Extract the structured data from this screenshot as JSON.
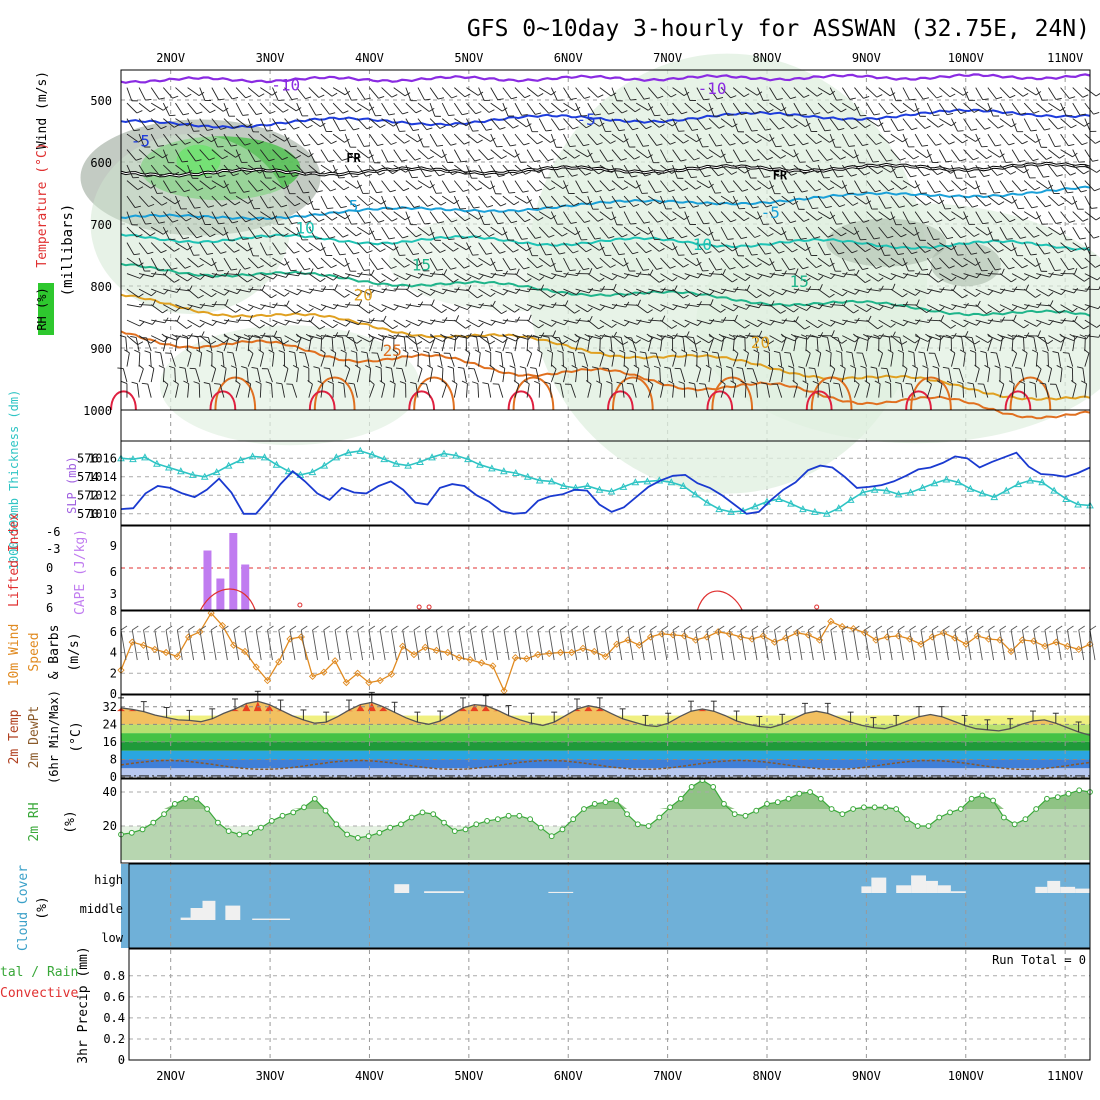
{
  "title": "GFS 0~10day 3-hourly for ASSWAN (32.75E, 24N)",
  "colors": {
    "purple": "#8a2be2",
    "blue": "#1e3cdc",
    "cyan": "#1aa0d8",
    "teal": "#1ec3b4",
    "green_c": "#1fb48a",
    "orange": "#e0a020",
    "dk_orange": "#e07020",
    "red": "#e02040",
    "cloud_bg": "#6fb0d8",
    "rh_green": "#2ec82e",
    "slp": "#1a3ad0",
    "thick": "#2ec4c4",
    "cape": "#c07cf0",
    "li": "#e03030",
    "wind": "#e08a20",
    "rh2m": "#3aa83a"
  },
  "dates": [
    "2NOV",
    "3NOV",
    "4NOV",
    "5NOV",
    "6NOV",
    "7NOV",
    "8NOV",
    "9NOV",
    "10NOV",
    "11NOV"
  ],
  "panels": {
    "upper": {
      "ylabel_wind": "Wind (m/s)",
      "ylabel_temp": "Temperature (°C)",
      "ylabel_rh": "RH (%)",
      "ylabel_mb": "(millibars)",
      "levels": [
        "500",
        "600",
        "700",
        "800",
        "900",
        "1000"
      ],
      "freezing_label": "FR",
      "contour_labels": [
        {
          "text": "-10",
          "color": "purple",
          "t": 0.17,
          "mb": 485
        },
        {
          "text": "-10",
          "color": "purple",
          "t": 0.61,
          "mb": 490
        },
        {
          "text": "-5",
          "color": "blue",
          "t": 0.02,
          "mb": 575
        },
        {
          "text": "-5",
          "color": "blue",
          "t": 0.48,
          "mb": 540
        },
        {
          "text": "FR",
          "color": "black",
          "t": 0.24,
          "mb": 600
        },
        {
          "text": "FR",
          "color": "black",
          "t": 0.68,
          "mb": 628
        },
        {
          "text": "5",
          "color": "cyan",
          "t": 0.24,
          "mb": 680
        },
        {
          "text": "-5",
          "color": "cyan",
          "t": 0.67,
          "mb": 690
        },
        {
          "text": "10",
          "color": "teal",
          "t": 0.19,
          "mb": 715
        },
        {
          "text": "10",
          "color": "teal",
          "t": 0.6,
          "mb": 742
        },
        {
          "text": "15",
          "color": "green_c",
          "t": 0.31,
          "mb": 775
        },
        {
          "text": "15",
          "color": "green_c",
          "t": 0.7,
          "mb": 802
        },
        {
          "text": "20",
          "color": "orange",
          "t": 0.25,
          "mb": 823
        },
        {
          "text": "20",
          "color": "orange",
          "t": 0.66,
          "mb": 900
        },
        {
          "text": "25",
          "color": "dk_orange",
          "t": 0.28,
          "mb": 913
        }
      ]
    },
    "thickness": {
      "ylabel_left": "1000-500mb Thickness (dm)",
      "ylabel_right": "SLP (mb)",
      "left_ticks": [
        "576",
        "574",
        "572",
        "570"
      ],
      "right_ticks": [
        "1016",
        "1014",
        "1012",
        "1010"
      ]
    },
    "cape": {
      "ylabel_li": "Lifted Index",
      "ylabel_cape": "CAPE (J/kg)",
      "li_ticks": [
        "-6",
        "-3",
        "0",
        "3",
        "6"
      ],
      "cape_ticks": [
        "9",
        "6",
        "3"
      ]
    },
    "wind": {
      "ylabel_a": "10m Wind",
      "ylabel_b": "Speed",
      "ylabel_c": "& Barbs",
      "ylabel_unit": "(m/s)",
      "ticks": [
        "8",
        "6",
        "4",
        "2",
        "0"
      ]
    },
    "temp": {
      "ylabel_a": "2m Temp",
      "ylabel_b": "2m DewPt",
      "ylabel_c": "(6hr Min/Max)",
      "ylabel_unit": "(°C)",
      "ticks": [
        "32",
        "24",
        "16",
        "8",
        "0"
      ]
    },
    "rh": {
      "ylabel": "2m RH",
      "ylabel_unit": "(%)",
      "ticks": [
        "40",
        "20"
      ]
    },
    "cloud": {
      "ylabel": "Cloud Cover",
      "ylabel_unit": "(%)",
      "ticks": [
        "high",
        "middle",
        "low"
      ]
    },
    "precip": {
      "ylabel_a": "tal / Rain",
      "ylabel_b": "Convective",
      "ylabel_c": "3hr Precip (mm)",
      "ticks": [
        "0.8",
        "0.6",
        "0.4",
        "0.2",
        "0"
      ],
      "run_total": "Run Total = 0"
    }
  },
  "chart_data": {
    "type": "line",
    "title": "GFS 0~10day 3-hourly for ASSWAN (32.75E, 24N)",
    "x_axis": "time (days, 3-hourly)",
    "x_start": 1.5,
    "x_end": 11.25,
    "dates": [
      "2NOV",
      "3NOV",
      "4NOV",
      "5NOV",
      "6NOV",
      "7NOV",
      "8NOV",
      "9NOV",
      "10NOV",
      "11NOV"
    ],
    "slp_mb": [
      1010.5,
      1010.6,
      1012.2,
      1013.0,
      1012.8,
      1012.2,
      1011.8,
      1012.6,
      1013.8,
      1012.3,
      1010.0,
      1010.0,
      1011.5,
      1013.2,
      1014.6,
      1013.5,
      1012.2,
      1011.5,
      1012.8,
      1012.3,
      1012.2,
      1013.0,
      1013.5,
      1012.6,
      1011.2,
      1011.0,
      1012.8,
      1013.2,
      1013.0,
      1012.0,
      1011.3,
      1010.3,
      1010.0,
      1010.1,
      1011.4,
      1011.9,
      1012.1,
      1012.6,
      1012.5,
      1011.0,
      1010.2,
      1010.7,
      1011.8,
      1012.9,
      1013.6,
      1014.1,
      1014.2,
      1013.3,
      1012.8,
      1012.0,
      1011.0,
      1010.0,
      1010.2,
      1011.5,
      1012.6,
      1013.4,
      1014.7,
      1015.2,
      1015.0,
      1014.0,
      1012.8,
      1012.9,
      1013.1,
      1013.5,
      1014.1,
      1014.8,
      1015.0,
      1015.5,
      1016.2,
      1016.0,
      1015.0,
      1015.6,
      1016.1,
      1016.6,
      1015.1,
      1014.3,
      1014.2,
      1014.0,
      1014.4,
      1015.0
    ],
    "thickness_dm": [
      576.0,
      575.9,
      576.1,
      575.4,
      575.0,
      574.6,
      574.2,
      574.0,
      574.5,
      575.2,
      575.8,
      576.2,
      576.1,
      575.3,
      574.6,
      574.2,
      574.5,
      575.2,
      576.1,
      576.6,
      576.8,
      576.4,
      575.9,
      575.4,
      575.2,
      575.6,
      576.1,
      576.5,
      576.3,
      575.9,
      575.3,
      574.9,
      574.6,
      574.4,
      574.0,
      573.6,
      573.5,
      573.0,
      572.8,
      573.0,
      572.6,
      572.4,
      572.9,
      573.4,
      573.5,
      573.6,
      573.4,
      573.0,
      572.1,
      571.2,
      570.5,
      570.2,
      570.3,
      570.8,
      571.3,
      571.6,
      571.1,
      570.5,
      570.2,
      570.0,
      570.6,
      571.5,
      572.3,
      572.6,
      572.5,
      572.1,
      572.3,
      572.8,
      573.3,
      573.7,
      573.4,
      572.7,
      572.2,
      571.8,
      572.5,
      573.2,
      573.6,
      573.4,
      572.5,
      571.6,
      571.0,
      570.9
    ],
    "cape_jkg": {
      "x": [
        2.37,
        2.5,
        2.63,
        2.75
      ],
      "values": [
        8.0,
        4.0,
        10.5,
        6.0
      ]
    },
    "wind_speed_ms": [
      2.3,
      5.0,
      4.7,
      4.3,
      4.0,
      3.6,
      5.5,
      6.0,
      7.8,
      6.6,
      4.7,
      4.1,
      2.6,
      1.3,
      3.1,
      5.3,
      5.5,
      1.7,
      2.1,
      3.2,
      1.1,
      2.0,
      1.1,
      1.3,
      1.9,
      4.6,
      3.8,
      4.5,
      4.2,
      4.0,
      3.5,
      3.3,
      3.0,
      2.7,
      0.3,
      3.5,
      3.4,
      3.8,
      3.9,
      4.0,
      4.0,
      4.4,
      4.1,
      3.6,
      4.8,
      5.2,
      4.7,
      5.5,
      5.8,
      5.7,
      5.6,
      5.2,
      5.5,
      6.0,
      5.8,
      5.5,
      5.3,
      5.6,
      5.0,
      5.4,
      5.9,
      5.7,
      5.2,
      7.0,
      6.5,
      6.3,
      5.9,
      5.2,
      5.5,
      5.6,
      5.3,
      4.8,
      5.5,
      5.9,
      5.4,
      4.8,
      5.6,
      5.3,
      5.2,
      4.1,
      5.2,
      5.1,
      4.6,
      5.0,
      4.6,
      4.3,
      4.8
    ],
    "temp_c": [
      31.5,
      30.8,
      29.8,
      28.2,
      27.1,
      26.0,
      25.8,
      25.2,
      26.5,
      29.0,
      31.0,
      33.5,
      34.5,
      33.0,
      30.5,
      28.0,
      26.0,
      24.5,
      25.0,
      27.5,
      30.5,
      33.0,
      34.0,
      32.0,
      29.5,
      27.0,
      25.0,
      24.0,
      25.5,
      28.5,
      31.5,
      33.0,
      32.5,
      30.5,
      28.0,
      26.0,
      24.5,
      23.5,
      25.0,
      28.0,
      31.0,
      32.5,
      31.5,
      29.0,
      26.5,
      25.0,
      23.5,
      23.0,
      24.5,
      27.5,
      30.0,
      31.0,
      30.0,
      28.0,
      25.5,
      24.0,
      23.0,
      22.5,
      24.0,
      26.5,
      29.0,
      30.0,
      29.0,
      27.0,
      25.0,
      23.5,
      22.5,
      22.0,
      23.5,
      25.5,
      27.5,
      28.5,
      27.5,
      25.5,
      23.5,
      22.0,
      21.5,
      21.0,
      22.0,
      24.0,
      25.5,
      26.0,
      24.5,
      22.5,
      20.5,
      19.0
    ],
    "rh_pct": [
      15,
      16,
      18,
      22,
      27,
      33,
      36,
      36,
      30,
      22,
      17,
      15,
      16,
      19,
      23,
      26,
      28,
      31,
      36,
      29,
      21,
      15,
      13,
      14,
      16,
      19,
      21,
      25,
      28,
      27,
      22,
      17,
      18,
      21,
      23,
      24,
      26,
      26,
      24,
      19,
      14,
      18,
      24,
      30,
      33,
      34,
      35,
      27,
      21,
      20,
      25,
      31,
      36,
      43,
      47,
      43,
      33,
      27,
      26,
      29,
      33,
      34,
      36,
      39,
      40,
      36,
      30,
      27,
      30,
      31,
      31,
      31,
      30,
      24,
      20,
      20,
      25,
      28,
      30,
      36,
      38,
      35,
      25,
      21,
      24,
      30,
      36,
      37,
      39,
      41,
      40
    ],
    "cloud_high": [
      [
        4.25,
        4.4,
        0.4
      ],
      [
        4.55,
        4.95,
        0.08
      ],
      [
        5.8,
        6.05,
        0.05
      ],
      [
        8.95,
        9.05,
        0.3
      ],
      [
        9.05,
        9.2,
        0.7
      ],
      [
        9.3,
        9.45,
        0.35
      ],
      [
        9.45,
        9.6,
        0.8
      ],
      [
        9.6,
        9.72,
        0.55
      ],
      [
        9.72,
        9.85,
        0.35
      ],
      [
        9.85,
        10.0,
        0.08
      ],
      [
        10.7,
        10.82,
        0.28
      ],
      [
        10.82,
        10.95,
        0.55
      ],
      [
        10.95,
        11.1,
        0.28
      ],
      [
        11.1,
        11.25,
        0.2
      ]
    ],
    "cloud_middle": [
      [
        2.1,
        2.2,
        0.1
      ],
      [
        2.2,
        2.32,
        0.5
      ],
      [
        2.32,
        2.45,
        0.8
      ],
      [
        2.55,
        2.7,
        0.6
      ],
      [
        2.82,
        3.2,
        0.06
      ]
    ],
    "precip_mm": [],
    "run_total": "Run Total = 0"
  }
}
